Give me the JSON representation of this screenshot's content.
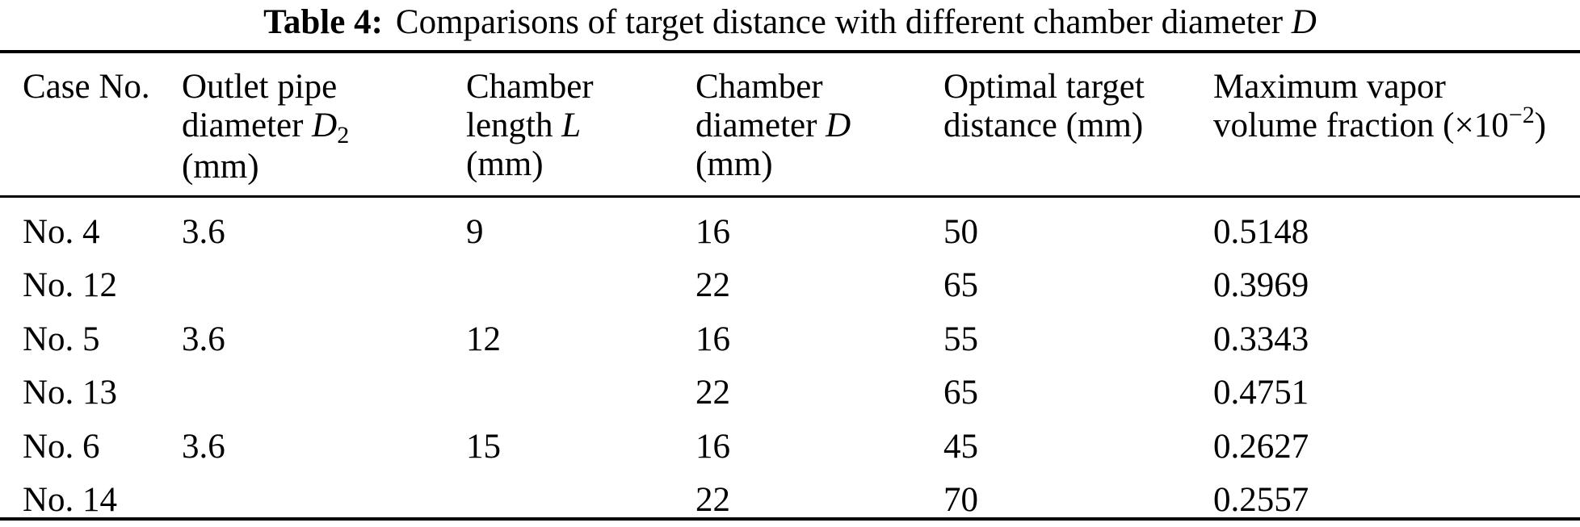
{
  "colors": {
    "text": "#000000",
    "background": "#ffffff",
    "rule": "#000000"
  },
  "table": {
    "title_label": "Table 4:",
    "title_text": "Comparisons of target distance with different chamber diameter ",
    "title_var": "D",
    "columns": [
      {
        "line1": "Case No."
      },
      {
        "line1": "Outlet pipe",
        "line2_text": "diameter ",
        "line2_var": "D",
        "line2_sub": "2",
        "line3": "(mm)"
      },
      {
        "line1": "Chamber",
        "line2_text": "length ",
        "line2_var": "L",
        "line3": "(mm)"
      },
      {
        "line1": "Chamber",
        "line2_text": "diameter ",
        "line2_var": "D",
        "line3": "(mm)"
      },
      {
        "line1": "Optimal target",
        "line2_text": "distance (mm)"
      },
      {
        "line1": "Maximum vapor",
        "line2_text": "volume fraction (×10",
        "line2_sup": "−2",
        "line2_close": ")"
      }
    ],
    "rows": [
      {
        "case": "No. 4",
        "d2": "3.6",
        "l": "9",
        "d": "16",
        "dist": "50",
        "vvf": "0.5148"
      },
      {
        "case": "No. 12",
        "d2": "",
        "l": "",
        "d": "22",
        "dist": "65",
        "vvf": "0.3969"
      },
      {
        "case": "No. 5",
        "d2": "3.6",
        "l": "12",
        "d": "16",
        "dist": "55",
        "vvf": "0.3343"
      },
      {
        "case": "No. 13",
        "d2": "",
        "l": "",
        "d": "22",
        "dist": "65",
        "vvf": "0.4751"
      },
      {
        "case": "No. 6",
        "d2": "3.6",
        "l": "15",
        "d": "16",
        "dist": "45",
        "vvf": "0.2627"
      },
      {
        "case": "No. 14",
        "d2": "",
        "l": "",
        "d": "22",
        "dist": "70",
        "vvf": "0.2557"
      }
    ]
  }
}
